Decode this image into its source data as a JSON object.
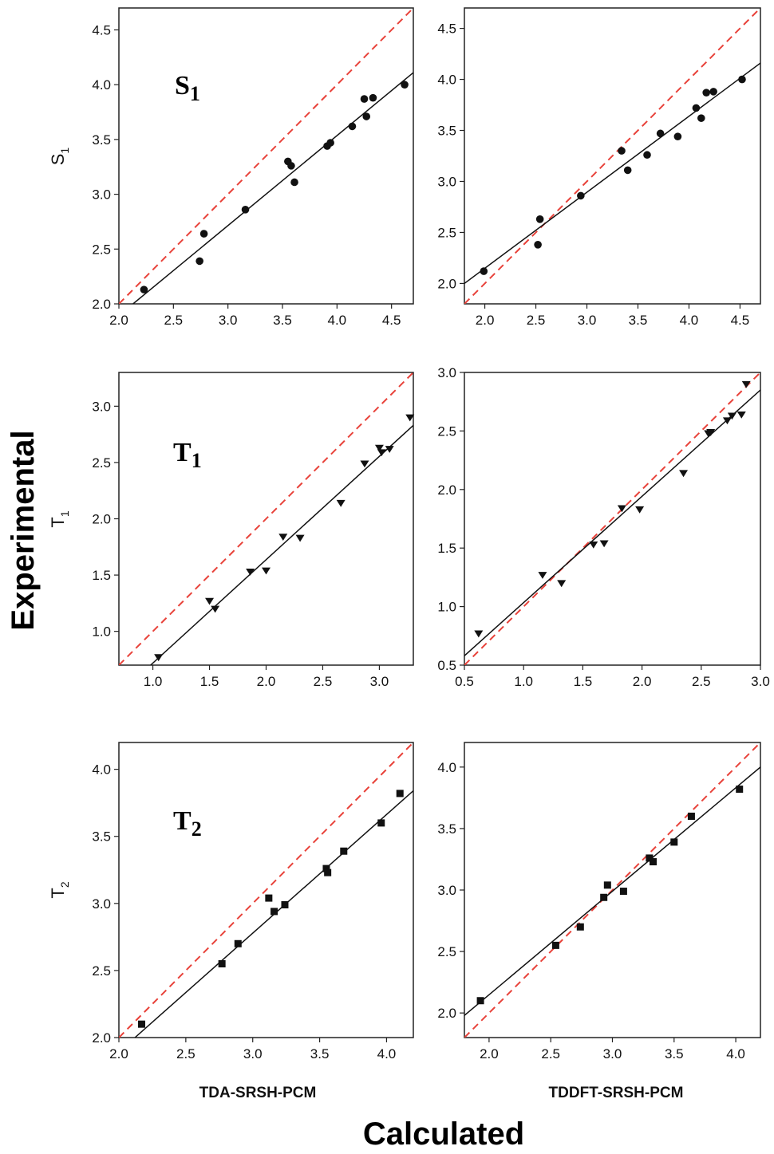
{
  "figure": {
    "column_labels": [
      "TDA-SRSH-PCM",
      "TDDFT-SRSH-PCM"
    ],
    "y_axis_label": "Experimental",
    "x_axis_label": "Calculated"
  },
  "chart_data": [
    {
      "type": "scatter",
      "id": "s1-tda",
      "row": 0,
      "col": 0,
      "annotation": "S",
      "annotation_sub": "1",
      "ylabel": "S",
      "ylabel_sub": "1",
      "xlim": [
        2.0,
        4.7
      ],
      "ylim": [
        2.0,
        4.7
      ],
      "xticks": [
        2.0,
        2.5,
        3.0,
        3.5,
        4.0,
        4.5
      ],
      "yticks": [
        2.0,
        2.5,
        3.0,
        3.5,
        4.0,
        4.5
      ],
      "marker": "circle",
      "points": [
        [
          2.23,
          2.13
        ],
        [
          2.74,
          2.39
        ],
        [
          2.78,
          2.64
        ],
        [
          3.16,
          2.86
        ],
        [
          3.55,
          3.3
        ],
        [
          3.58,
          3.26
        ],
        [
          3.61,
          3.11
        ],
        [
          3.91,
          3.44
        ],
        [
          3.94,
          3.47
        ],
        [
          4.14,
          3.62
        ],
        [
          4.25,
          3.87
        ],
        [
          4.27,
          3.71
        ],
        [
          4.33,
          3.88
        ],
        [
          4.62,
          4.0
        ]
      ],
      "fit_line": [
        [
          2.13,
          2.0
        ],
        [
          4.7,
          4.11
        ]
      ],
      "identity_line": [
        [
          2.0,
          2.0
        ],
        [
          4.7,
          4.7
        ]
      ]
    },
    {
      "type": "scatter",
      "id": "s1-tddft",
      "row": 0,
      "col": 1,
      "ylabel": "",
      "annotation": "",
      "xlim": [
        1.8,
        4.7
      ],
      "ylim": [
        1.8,
        4.7
      ],
      "xticks": [
        2.0,
        2.5,
        3.0,
        3.5,
        4.0,
        4.5
      ],
      "yticks": [
        2.0,
        2.5,
        3.0,
        3.5,
        4.0,
        4.5
      ],
      "marker": "circle",
      "points": [
        [
          1.99,
          2.12
        ],
        [
          2.52,
          2.38
        ],
        [
          2.54,
          2.63
        ],
        [
          2.94,
          2.86
        ],
        [
          3.34,
          3.3
        ],
        [
          3.4,
          3.11
        ],
        [
          3.59,
          3.26
        ],
        [
          3.72,
          3.47
        ],
        [
          3.89,
          3.44
        ],
        [
          4.07,
          3.72
        ],
        [
          4.12,
          3.62
        ],
        [
          4.17,
          3.87
        ],
        [
          4.24,
          3.88
        ],
        [
          4.52,
          4.0
        ]
      ],
      "fit_line": [
        [
          1.8,
          2.0
        ],
        [
          4.7,
          4.16
        ]
      ],
      "identity_line": [
        [
          1.8,
          1.8
        ],
        [
          4.7,
          4.7
        ]
      ]
    },
    {
      "type": "scatter",
      "id": "t1-tda",
      "row": 1,
      "col": 0,
      "annotation": "T",
      "annotation_sub": "1",
      "ylabel": "T",
      "ylabel_sub": "1",
      "xlim": [
        0.7,
        3.3
      ],
      "ylim": [
        0.7,
        3.3
      ],
      "xticks": [
        1.0,
        1.5,
        2.0,
        2.5,
        3.0
      ],
      "yticks": [
        1.0,
        1.5,
        2.0,
        2.5,
        3.0
      ],
      "marker": "triangle-down",
      "points": [
        [
          1.05,
          0.77
        ],
        [
          1.5,
          1.27
        ],
        [
          1.55,
          1.2
        ],
        [
          1.86,
          1.53
        ],
        [
          2.0,
          1.54
        ],
        [
          2.15,
          1.84
        ],
        [
          2.3,
          1.83
        ],
        [
          2.66,
          2.14
        ],
        [
          2.87,
          2.49
        ],
        [
          3.0,
          2.63
        ],
        [
          3.02,
          2.59
        ],
        [
          3.09,
          2.62
        ],
        [
          3.27,
          2.9
        ]
      ],
      "fit_line": [
        [
          0.98,
          0.7
        ],
        [
          3.3,
          2.83
        ]
      ],
      "identity_line": [
        [
          0.7,
          0.7
        ],
        [
          3.3,
          3.3
        ]
      ]
    },
    {
      "type": "scatter",
      "id": "t1-tddft",
      "row": 1,
      "col": 1,
      "ylabel": "",
      "annotation": "",
      "xlim": [
        0.5,
        3.0
      ],
      "ylim": [
        0.5,
        3.0
      ],
      "xticks": [
        0.5,
        1.0,
        1.5,
        2.0,
        2.5,
        3.0
      ],
      "yticks": [
        0.5,
        1.0,
        1.5,
        2.0,
        2.5,
        3.0
      ],
      "marker": "triangle-down",
      "points": [
        [
          0.62,
          0.77
        ],
        [
          1.16,
          1.27
        ],
        [
          1.32,
          1.2
        ],
        [
          1.59,
          1.53
        ],
        [
          1.68,
          1.54
        ],
        [
          1.83,
          1.84
        ],
        [
          1.98,
          1.83
        ],
        [
          2.35,
          2.14
        ],
        [
          2.56,
          2.48
        ],
        [
          2.58,
          2.49
        ],
        [
          2.72,
          2.59
        ],
        [
          2.76,
          2.63
        ],
        [
          2.84,
          2.64
        ],
        [
          2.88,
          2.9
        ]
      ],
      "fit_line": [
        [
          0.5,
          0.58
        ],
        [
          3.0,
          2.85
        ]
      ],
      "identity_line": [
        [
          0.5,
          0.5
        ],
        [
          3.0,
          3.0
        ]
      ]
    },
    {
      "type": "scatter",
      "id": "t2-tda",
      "row": 2,
      "col": 0,
      "annotation": "T",
      "annotation_sub": "2",
      "ylabel": "T",
      "ylabel_sub": "2",
      "xlim": [
        2.0,
        4.2
      ],
      "ylim": [
        2.0,
        4.2
      ],
      "xticks": [
        2.0,
        2.5,
        3.0,
        3.5,
        4.0
      ],
      "yticks": [
        2.0,
        2.5,
        3.0,
        3.5,
        4.0
      ],
      "marker": "square",
      "points": [
        [
          2.17,
          2.1
        ],
        [
          2.77,
          2.55
        ],
        [
          2.89,
          2.7
        ],
        [
          3.12,
          3.04
        ],
        [
          3.16,
          2.94
        ],
        [
          3.24,
          2.99
        ],
        [
          3.55,
          3.26
        ],
        [
          3.56,
          3.23
        ],
        [
          3.68,
          3.39
        ],
        [
          3.96,
          3.6
        ],
        [
          4.1,
          3.82
        ]
      ],
      "fit_line": [
        [
          2.12,
          2.0
        ],
        [
          4.2,
          3.84
        ]
      ],
      "identity_line": [
        [
          2.0,
          2.0
        ],
        [
          4.2,
          4.2
        ]
      ]
    },
    {
      "type": "scatter",
      "id": "t2-tddft",
      "row": 2,
      "col": 1,
      "ylabel": "",
      "annotation": "",
      "xlim": [
        1.8,
        4.2
      ],
      "ylim": [
        1.8,
        4.2
      ],
      "xticks": [
        2.0,
        2.5,
        3.0,
        3.5,
        4.0
      ],
      "yticks": [
        2.0,
        2.5,
        3.0,
        3.5,
        4.0
      ],
      "marker": "square",
      "points": [
        [
          1.93,
          2.1
        ],
        [
          2.54,
          2.55
        ],
        [
          2.74,
          2.7
        ],
        [
          2.93,
          2.94
        ],
        [
          2.96,
          3.04
        ],
        [
          3.09,
          2.99
        ],
        [
          3.3,
          3.26
        ],
        [
          3.33,
          3.23
        ],
        [
          3.5,
          3.39
        ],
        [
          3.64,
          3.6
        ],
        [
          4.03,
          3.82
        ]
      ],
      "fit_line": [
        [
          1.8,
          1.98
        ],
        [
          4.2,
          4.0
        ]
      ],
      "identity_line": [
        [
          1.8,
          1.8
        ],
        [
          4.2,
          4.2
        ]
      ]
    }
  ],
  "colors": {
    "identity_line": "#e8423a",
    "fit_line": "#111111",
    "marker": "#111111",
    "axis": "#222222"
  }
}
